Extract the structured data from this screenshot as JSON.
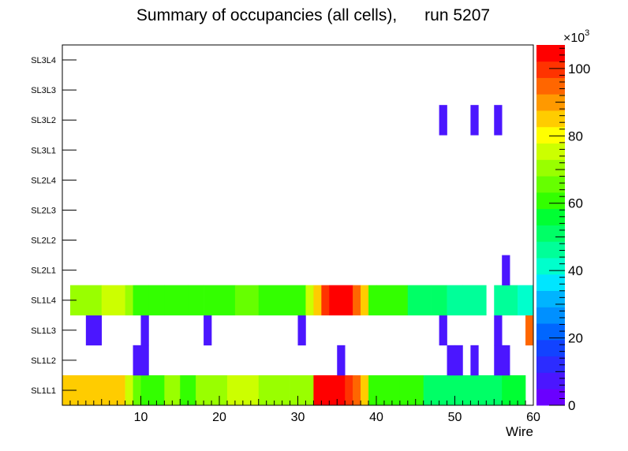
{
  "chart_data": {
    "type": "heatmap",
    "title": "Summary of occupancies (all cells),      run 5207",
    "xlabel": "Wire",
    "ylabel": "",
    "xlim": [
      0,
      60
    ],
    "x_ticks": [
      "10",
      "20",
      "30",
      "40",
      "50",
      "60"
    ],
    "y_categories": [
      "SL1L1",
      "SL1L2",
      "SL1L3",
      "SL1L4",
      "SL2L1",
      "SL2L2",
      "SL2L3",
      "SL2L4",
      "SL3L1",
      "SL3L2",
      "SL3L3",
      "SL3L4"
    ],
    "z_range": [
      0,
      107000
    ],
    "z_multiplier_label": "×10",
    "z_multiplier_exp": "3",
    "z_ticks": [
      "0",
      "20",
      "40",
      "60",
      "80",
      "100"
    ],
    "palette": [
      "#6a00ff",
      "#4b16ff",
      "#2c2cff",
      "#1243ff",
      "#0066ff",
      "#0090ff",
      "#00b4ff",
      "#00e6ff",
      "#00ffcc",
      "#00ff99",
      "#00ff66",
      "#00ff33",
      "#33ff00",
      "#66ff00",
      "#99ff00",
      "#ccff00",
      "#ffff00",
      "#ffcc00",
      "#ff9900",
      "#ff6600",
      "#ff3300",
      "#ff0000"
    ],
    "rows": {
      "SL1L1": [
        [
          1,
          8,
          85000
        ],
        [
          9,
          9,
          75000
        ],
        [
          10,
          10,
          65000
        ],
        [
          11,
          13,
          60000
        ],
        [
          14,
          15,
          70000
        ],
        [
          16,
          17,
          62000
        ],
        [
          18,
          21,
          70000
        ],
        [
          22,
          25,
          75000
        ],
        [
          26,
          29,
          70000
        ],
        [
          30,
          32,
          72000
        ],
        [
          33,
          36,
          104000
        ],
        [
          37,
          37,
          100000
        ],
        [
          38,
          38,
          95000
        ],
        [
          39,
          39,
          85000
        ],
        [
          40,
          43,
          60000
        ],
        [
          44,
          46,
          62000
        ],
        [
          47,
          56,
          50000
        ],
        [
          57,
          59,
          55000
        ]
      ],
      "SL1L2": [
        [
          10,
          11,
          5000
        ],
        [
          36,
          36,
          5000
        ],
        [
          50,
          50,
          5000
        ],
        [
          51,
          51,
          5000
        ],
        [
          53,
          53,
          5000
        ],
        [
          56,
          57,
          5000
        ]
      ],
      "SL1L3": [
        [
          4,
          5,
          5000
        ],
        [
          11,
          11,
          5000
        ],
        [
          19,
          19,
          5000
        ],
        [
          31,
          31,
          5000
        ],
        [
          49,
          49,
          5000
        ],
        [
          56,
          56,
          5000
        ],
        [
          60,
          60,
          97000
        ]
      ],
      "SL1L4": [
        [
          2,
          2,
          72000
        ],
        [
          3,
          5,
          70000
        ],
        [
          6,
          8,
          75000
        ],
        [
          9,
          9,
          70000
        ],
        [
          10,
          11,
          62000
        ],
        [
          12,
          13,
          60000
        ],
        [
          14,
          16,
          63000
        ],
        [
          17,
          18,
          60000
        ],
        [
          19,
          22,
          63000
        ],
        [
          23,
          25,
          68000
        ],
        [
          26,
          31,
          63000
        ],
        [
          32,
          32,
          75000
        ],
        [
          33,
          33,
          85000
        ],
        [
          34,
          34,
          100000
        ],
        [
          35,
          37,
          104000
        ],
        [
          38,
          38,
          95000
        ],
        [
          39,
          39,
          85000
        ],
        [
          40,
          40,
          63000
        ],
        [
          41,
          44,
          60000
        ],
        [
          45,
          47,
          52000
        ],
        [
          48,
          49,
          50000
        ],
        [
          50,
          51,
          48000
        ],
        [
          52,
          54,
          47000
        ],
        [
          55,
          55,
          0
        ],
        [
          56,
          58,
          47000
        ],
        [
          59,
          60,
          40000
        ]
      ],
      "SL2L1": [
        [
          57,
          57,
          5000
        ]
      ],
      "SL2L2": [],
      "SL2L3": [],
      "SL2L4": [],
      "SL3L1": [],
      "SL3L2": [
        [
          49,
          49,
          5000
        ],
        [
          53,
          53,
          5000
        ],
        [
          56,
          56,
          5000
        ]
      ],
      "SL3L3": [],
      "SL3L4": []
    }
  }
}
